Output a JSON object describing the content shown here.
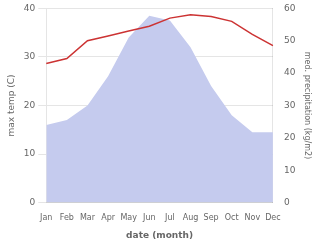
{
  "chart_data": {
    "type": "line",
    "xlabel": "date (month)",
    "ylabel": "max temp (C)",
    "y2label": "med. precipitation (kg/m2)",
    "categories": [
      "Jan",
      "Feb",
      "Mar",
      "Apr",
      "May",
      "Jun",
      "Jul",
      "Aug",
      "Sep",
      "Oct",
      "Nov",
      "Dec"
    ],
    "series": [
      {
        "type": "area",
        "color": "#c5cbee",
        "values": [
          16.0,
          17.0,
          20.0,
          26.0,
          34.0,
          38.5,
          37.5,
          32.0,
          24.0,
          18.0,
          14.5,
          14.5
        ]
      },
      {
        "type": "line",
        "axis": "y2",
        "color": "#cc3333",
        "values": [
          43.0,
          44.5,
          50.0,
          51.5,
          53.0,
          54.5,
          57.0,
          58.0,
          57.5,
          56.0,
          52.0,
          48.5
        ]
      }
    ],
    "ylim": [
      0,
      40
    ],
    "yticks": [
      0,
      10,
      20,
      30,
      40
    ],
    "y2lim": [
      0,
      60
    ],
    "y2ticks": [
      0,
      10,
      20,
      30,
      40,
      50,
      60
    ],
    "grid": true
  }
}
